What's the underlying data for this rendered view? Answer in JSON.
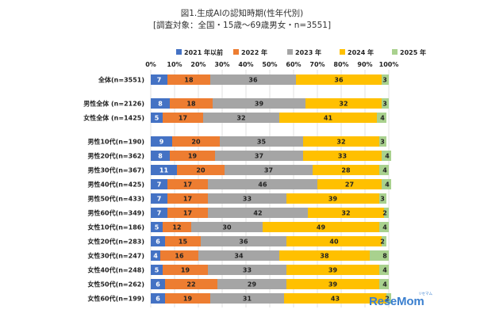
{
  "brand": {
    "name": "ReseMom",
    "tag": "リセマム"
  },
  "chart_data": {
    "type": "bar",
    "orientation": "horizontal",
    "stacked": true,
    "title": "図1.生成AIの認知時期(性年代別)",
    "subtitle": "[調査対象：全国・15歳〜69歳男女・n=3551]",
    "xlabel": "",
    "ylabel": "",
    "xlim": [
      0,
      100
    ],
    "x_ticks": [
      "0%",
      "10%",
      "20%",
      "30%",
      "40%",
      "50%",
      "60%",
      "70%",
      "80%",
      "90%",
      "100%"
    ],
    "legend_position": "top",
    "grid": true,
    "categories": [
      "全体(n=3551)",
      "男性全体 (n=2126)",
      "女性全体 (n=1425)",
      "男性10代(n=190)",
      "男性20代(n=362)",
      "男性30代(n=367)",
      "男性40代(n=425)",
      "男性50代(n=433)",
      "男性60代(n=349)",
      "女性10代(n=186)",
      "女性20代(n=283)",
      "女性30代(n=247)",
      "女性40代(n=248)",
      "女性50代(n=262)",
      "女性60代(n=199)"
    ],
    "groups": [
      [
        0
      ],
      [
        1,
        2
      ],
      [
        3,
        4,
        5,
        6,
        7,
        8,
        9,
        10,
        11,
        12,
        13,
        14
      ]
    ],
    "series": [
      {
        "name": "2021 年以前",
        "color": "#4472c4",
        "label_color": "#ffffff",
        "values": [
          7,
          8,
          5,
          9,
          8,
          11,
          7,
          7,
          7,
          5,
          6,
          4,
          5,
          6,
          6
        ]
      },
      {
        "name": "2022 年",
        "color": "#ed7d31",
        "label_color": "#222222",
        "values": [
          18,
          18,
          17,
          20,
          19,
          20,
          17,
          17,
          17,
          12,
          15,
          16,
          19,
          22,
          19
        ]
      },
      {
        "name": "2023 年",
        "color": "#a5a5a5",
        "label_color": "#222222",
        "values": [
          36,
          39,
          32,
          35,
          37,
          37,
          46,
          33,
          42,
          30,
          36,
          34,
          33,
          29,
          31
        ]
      },
      {
        "name": "2024 年",
        "color": "#ffc000",
        "label_color": "#222222",
        "values": [
          36,
          32,
          41,
          32,
          33,
          28,
          27,
          39,
          32,
          49,
          40,
          38,
          39,
          39,
          43
        ]
      },
      {
        "name": "2025 年",
        "color": "#a9d18e",
        "label_color": "#222222",
        "values": [
          3,
          3,
          4,
          3,
          4,
          4,
          4,
          3,
          2,
          4,
          2,
          8,
          4,
          4,
          2
        ]
      }
    ]
  }
}
